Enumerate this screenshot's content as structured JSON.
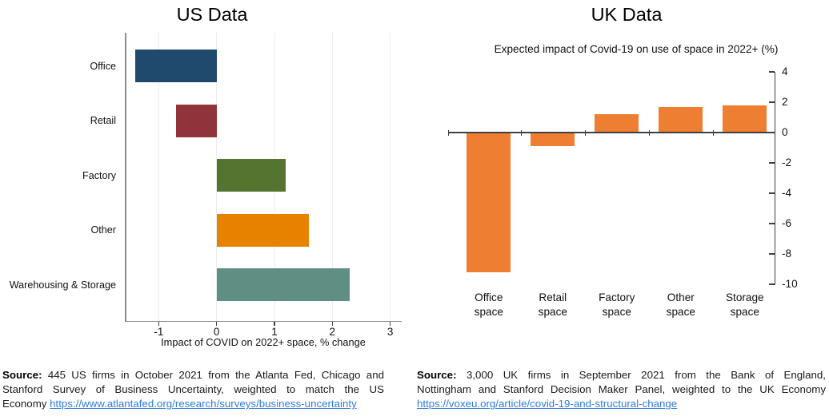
{
  "chart_data": [
    {
      "type": "bar",
      "orientation": "horizontal",
      "title": "US Data",
      "xlabel": "Impact of COVID on 2022+ space, % change",
      "categories": [
        "Office",
        "Retail",
        "Factory",
        "Other",
        "Warehousing & Storage"
      ],
      "values": [
        -1.4,
        -0.7,
        1.2,
        1.6,
        2.3
      ],
      "bar_colors": [
        "#1F4A6D",
        "#91333A",
        "#55742F",
        "#E68200",
        "#5F8F82"
      ],
      "x_ticks": [
        -1,
        0,
        1,
        2,
        3
      ],
      "xlim": [
        -1.59,
        3.2
      ],
      "grid": "vertical-light",
      "gridline_color": "#E8EEF0",
      "axis_color": "#8C8C8C",
      "legend": "none"
    },
    {
      "type": "bar",
      "orientation": "vertical",
      "title": "UK Data",
      "subtitle": "Expected impact of Covid-19 on use of space in 2022+ (%)",
      "categories": [
        "Office space",
        "Retail space",
        "Factory space",
        "Other space",
        "Storage space"
      ],
      "values": [
        -9.2,
        -0.9,
        1.2,
        1.7,
        1.8
      ],
      "bar_color": "#EE7E32",
      "y_ticks": [
        4,
        2,
        0,
        -2,
        -4,
        -6,
        -8,
        -10
      ],
      "ylim": [
        -10,
        4
      ],
      "y_axis_side": "right",
      "grid": "off",
      "axis_color": "#3F3F3F",
      "legend": "none"
    }
  ],
  "us_source": {
    "label": "Source:",
    "line1_rest": "445 US firms in October 2021 from the Atlanta Fed, Chicago and",
    "line2": "Stanford Survey of Business Uncertainty, weighted to match the US",
    "line3_prefix": "Economy",
    "link": "https://www.atlantafed.org/research/surveys/business-uncertainty"
  },
  "uk_source": {
    "label": "Source:",
    "line1_rest": "3,000 UK firms in September 2021 from the Bank of England,",
    "line2": "Nottingham and Stanford Decision Maker Panel, weighted to the UK Economy",
    "link": "https://voxeu.org/article/covid-19-and-structural-change"
  },
  "colors": {
    "link": "#2F7BD9",
    "text": "#111111"
  }
}
